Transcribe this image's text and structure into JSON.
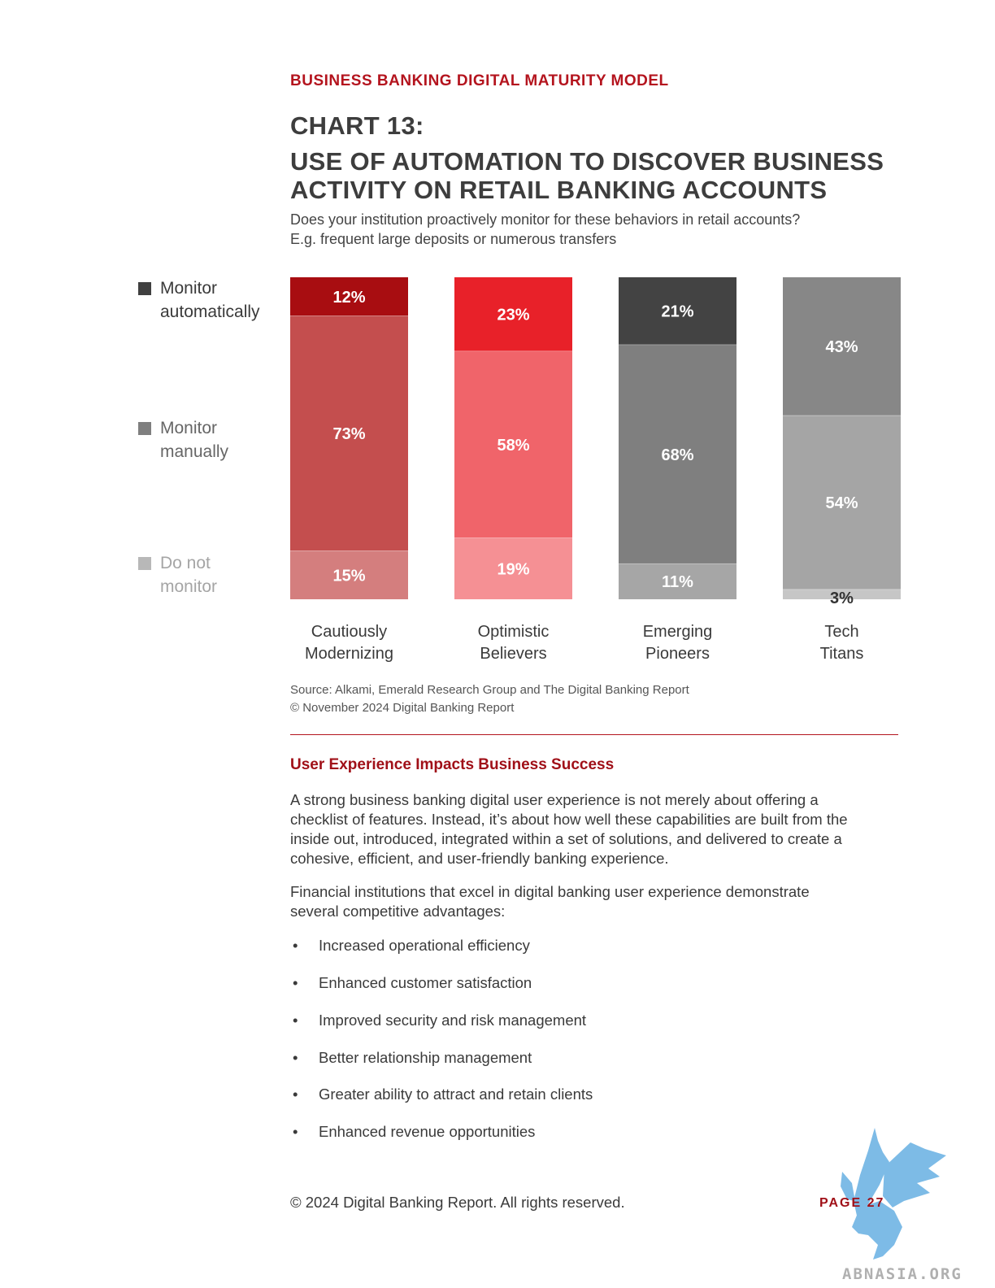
{
  "header": {
    "kicker": "BUSINESS BANKING DIGITAL MATURITY MODEL",
    "chart_number": "CHART 13:",
    "chart_title": "USE OF AUTOMATION TO DISCOVER BUSINESS ACTIVITY ON RETAIL BANKING ACCOUNTS",
    "question": [
      "Does your institution proactively monitor for these behaviors in retail accounts?",
      "E.g. frequent large deposits or numerous transfers"
    ]
  },
  "legend": [
    {
      "lines": [
        "Monitor",
        "automatically"
      ],
      "color": "#404040",
      "text_color": "#3a3a3a"
    },
    {
      "lines": [
        "Monitor",
        "manually"
      ],
      "color": "#7f7f7f",
      "text_color": "#666666"
    },
    {
      "lines": [
        "Do not",
        "monitor"
      ],
      "color": "#b8b8b8",
      "text_color": "#a5a5a5"
    }
  ],
  "chart_data": {
    "type": "bar",
    "stacked": true,
    "categories": [
      [
        "Cautiously",
        "Modernizing"
      ],
      [
        "Optimistic",
        "Believers"
      ],
      [
        "Emerging",
        "Pioneers"
      ],
      [
        "Tech",
        "Titans"
      ]
    ],
    "series": [
      {
        "name": "Monitor automatically",
        "values": [
          12,
          23,
          21,
          43
        ]
      },
      {
        "name": "Monitor manually",
        "values": [
          73,
          58,
          68,
          54
        ]
      },
      {
        "name": "Do not monitor",
        "values": [
          15,
          19,
          11,
          3
        ]
      }
    ],
    "data_labels": [
      [
        "12%",
        "23%",
        "21%",
        "43%"
      ],
      [
        "73%",
        "58%",
        "68%",
        "54%"
      ],
      [
        "15%",
        "19%",
        "11%",
        "3%"
      ]
    ],
    "bar_colors": [
      [
        "#a80d11",
        "#c44e4e",
        "#d47e7e"
      ],
      [
        "#e82129",
        "#f0646a",
        "#f59094"
      ],
      [
        "#434343",
        "#7f7f7f",
        "#a6a6a6"
      ],
      [
        "#878787",
        "#a5a5a5",
        "#c6c6c6"
      ]
    ],
    "label_colors": [
      [
        "#ffffff",
        "#ffffff",
        "#ffffff"
      ],
      [
        "#ffffff",
        "#ffffff",
        "#ffffff"
      ],
      [
        "#ffffff",
        "#ffffff",
        "#ffffff"
      ],
      [
        "#ffffff",
        "#ffffff",
        "#333333"
      ]
    ],
    "ylim": [
      0,
      100
    ],
    "legend_position": "left"
  },
  "source": [
    "Source: Alkami, Emerald Research Group and The Digital Banking Report",
    "© November 2024 Digital Banking Report"
  ],
  "section": {
    "heading": "User Experience Impacts Business Success",
    "para1": [
      "A strong business banking digital user experience is not merely about offering a",
      "checklist of features. Instead, it’s about how well these capabilities are built from the",
      "inside out, introduced, integrated within a set of solutions, and delivered to create a",
      "cohesive, efficient, and user-friendly banking experience."
    ],
    "para2": [
      "Financial institutions that excel in digital banking user experience demonstrate",
      "several competitive advantages:"
    ],
    "bullet_glyph": "•",
    "bullets": [
      "Increased operational efficiency",
      "Enhanced customer satisfaction",
      "Improved security and risk management",
      "Better relationship management",
      "Greater ability to attract and retain clients",
      "Enhanced revenue opportunities"
    ]
  },
  "footer": {
    "copyright": "© 2024 Digital Banking Report. All rights reserved.",
    "page": "PAGE 27"
  },
  "watermark": {
    "text": "ABNASIA.ORG",
    "color": "#6fb4e4",
    "icon": "griffin-logo-icon"
  }
}
